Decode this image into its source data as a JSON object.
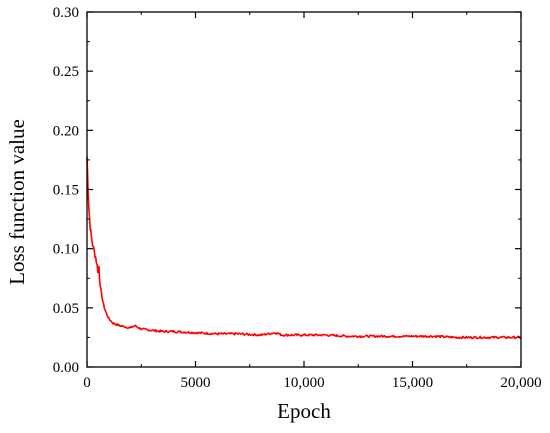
{
  "chart_data": {
    "type": "line",
    "xlabel": "Epoch",
    "ylabel": "Loss function value",
    "xlim": [
      0,
      20000
    ],
    "ylim": [
      0,
      0.3
    ],
    "x_ticks": [
      {
        "value": 0,
        "label": "0"
      },
      {
        "value": 5000,
        "label": "5000"
      },
      {
        "value": 10000,
        "label": "10,000"
      },
      {
        "value": 15000,
        "label": "15,000"
      },
      {
        "value": 20000,
        "label": "20,000"
      }
    ],
    "y_ticks": [
      {
        "value": 0.0,
        "label": "0.00"
      },
      {
        "value": 0.05,
        "label": "0.05"
      },
      {
        "value": 0.1,
        "label": "0.10"
      },
      {
        "value": 0.15,
        "label": "0.15"
      },
      {
        "value": 0.2,
        "label": "0.20"
      },
      {
        "value": 0.25,
        "label": "0.25"
      },
      {
        "value": 0.3,
        "label": "0.30"
      }
    ],
    "series": [
      {
        "color": "#ff0000",
        "x": [
          0,
          50,
          100,
          150,
          200,
          300,
          400,
          500,
          550,
          600,
          700,
          800,
          900,
          1000,
          1200,
          1500,
          2000,
          2200,
          2500,
          3000,
          3500,
          4000,
          5000,
          6000,
          7000,
          8000,
          8700,
          9000,
          10000,
          11000,
          12000,
          13000,
          14000,
          15000,
          16000,
          17000,
          18000,
          19000,
          20000
        ],
        "y": [
          0.178,
          0.15,
          0.13,
          0.118,
          0.11,
          0.1,
          0.093,
          0.082,
          0.085,
          0.07,
          0.058,
          0.05,
          0.045,
          0.041,
          0.037,
          0.035,
          0.033,
          0.035,
          0.032,
          0.031,
          0.03,
          0.03,
          0.029,
          0.028,
          0.028,
          0.027,
          0.029,
          0.027,
          0.027,
          0.027,
          0.026,
          0.026,
          0.026,
          0.026,
          0.026,
          0.025,
          0.025,
          0.025,
          0.025
        ]
      }
    ],
    "grid": false
  }
}
